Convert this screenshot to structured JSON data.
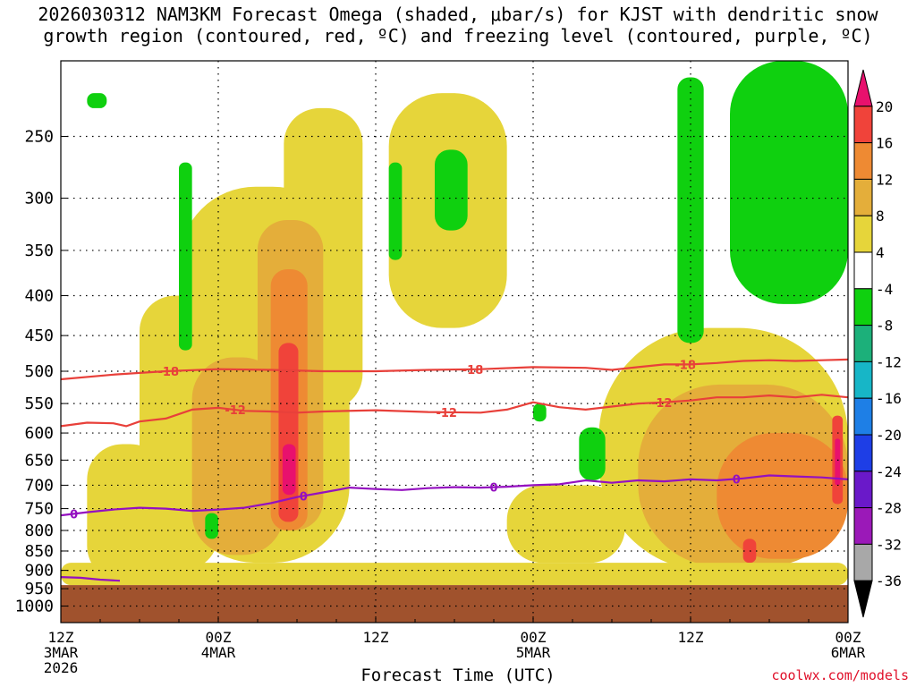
{
  "title": {
    "line1": "2026030312 NAM3KM Forecast Omega (shaded, μbar/s) for KJST with dendritic snow",
    "line2": "growth region (contoured, red, ºC) and freezing level (contoured, purple, ºC)"
  },
  "credit": "coolwx.com/models",
  "chart_data": {
    "type": "heatmap",
    "title": "2026030312 NAM3KM Forecast Omega (shaded, μbar/s) for KJST with dendritic snow growth region (contoured, red, ºC) and freezing level (contoured, purple, ºC)",
    "xlabel": "Forecast Time (UTC)",
    "ylabel": "",
    "x_range_hours": [
      0,
      60
    ],
    "x_ticks": [
      {
        "hour": 0,
        "lines": [
          "12Z",
          "3MAR",
          "2026"
        ]
      },
      {
        "hour": 12,
        "lines": [
          "00Z",
          "4MAR"
        ]
      },
      {
        "hour": 24,
        "lines": [
          "12Z"
        ]
      },
      {
        "hour": 36,
        "lines": [
          "00Z",
          "5MAR"
        ]
      },
      {
        "hour": 48,
        "lines": [
          "12Z"
        ]
      },
      {
        "hour": 60,
        "lines": [
          "00Z",
          "6MAR"
        ]
      }
    ],
    "y_range_hpa": [
      1050,
      200
    ],
    "y_ticks": [
      250,
      300,
      350,
      400,
      450,
      500,
      550,
      600,
      650,
      700,
      750,
      800,
      850,
      900,
      950,
      1000
    ],
    "grid": true,
    "colorbar": {
      "labels": [
        "20",
        "16",
        "12",
        "8",
        "4",
        "-4",
        "-8",
        "-12",
        "-16",
        "-20",
        "-24",
        "-28",
        "-32",
        "-36"
      ],
      "colors": [
        "#e8116d",
        "#f0433a",
        "#ee8a33",
        "#e4ae3a",
        "#e6d53a",
        "#ffffff",
        "#0fd00f",
        "#1cb07a",
        "#17b6c7",
        "#1e7fe6",
        "#1e3ee6",
        "#6a19c9",
        "#9b19b8",
        "#a8a8a8",
        "#000000"
      ]
    },
    "ground_below_hpa": 940,
    "ground_color": "#a0522d",
    "omega_regions": [
      {
        "kind": "rising",
        "level": 4,
        "hours": [
          2,
          8
        ],
        "hpa": [
          930,
          620
        ]
      },
      {
        "kind": "rising",
        "level": 4,
        "hours": [
          6,
          12
        ],
        "hpa": [
          900,
          400
        ]
      },
      {
        "kind": "rising",
        "level": 4,
        "hours": [
          9,
          22
        ],
        "hpa": [
          880,
          290
        ]
      },
      {
        "kind": "rising",
        "level": 4,
        "hours": [
          17,
          23
        ],
        "hpa": [
          560,
          230
        ]
      },
      {
        "kind": "rising",
        "level": 8,
        "hours": [
          10,
          17
        ],
        "hpa": [
          860,
          480
        ]
      },
      {
        "kind": "rising",
        "level": 8,
        "hours": [
          15,
          20
        ],
        "hpa": [
          800,
          320
        ]
      },
      {
        "kind": "rising",
        "level": 12,
        "hours": [
          16,
          18.8
        ],
        "hpa": [
          800,
          370
        ]
      },
      {
        "kind": "rising",
        "level": 16,
        "hours": [
          16.6,
          18.1
        ],
        "hpa": [
          780,
          460
        ]
      },
      {
        "kind": "rising",
        "level": 20,
        "hours": [
          16.9,
          17.9
        ],
        "hpa": [
          720,
          620
        ]
      },
      {
        "kind": "rising",
        "level": 4,
        "hours": [
          25,
          34
        ],
        "hpa": [
          440,
          220
        ]
      },
      {
        "kind": "rising",
        "level": 4,
        "hours": [
          34,
          43
        ],
        "hpa": [
          880,
          700
        ]
      },
      {
        "kind": "rising",
        "level": 4,
        "hours": [
          41,
          60
        ],
        "hpa": [
          900,
          440
        ]
      },
      {
        "kind": "rising",
        "level": 8,
        "hours": [
          44,
          60
        ],
        "hpa": [
          890,
          520
        ]
      },
      {
        "kind": "rising",
        "level": 12,
        "hours": [
          50,
          60
        ],
        "hpa": [
          870,
          600
        ]
      },
      {
        "kind": "rising",
        "level": 16,
        "hours": [
          58.8,
          59.6
        ],
        "hpa": [
          740,
          570
        ]
      },
      {
        "kind": "rising",
        "level": 20,
        "hours": [
          59,
          59.4
        ],
        "hpa": [
          700,
          610
        ]
      },
      {
        "kind": "rising",
        "level": 16,
        "hours": [
          52,
          53
        ],
        "hpa": [
          880,
          820
        ]
      },
      {
        "kind": "rising",
        "level": 4,
        "hours": [
          0,
          60
        ],
        "hpa": [
          940,
          880
        ]
      },
      {
        "kind": "sinking",
        "level": -4,
        "hours": [
          2,
          3.5
        ],
        "hpa": [
          230,
          220
        ]
      },
      {
        "kind": "sinking",
        "level": -4,
        "hours": [
          9,
          10
        ],
        "hpa": [
          470,
          270
        ]
      },
      {
        "kind": "sinking",
        "level": -4,
        "hours": [
          11,
          12
        ],
        "hpa": [
          820,
          760
        ]
      },
      {
        "kind": "sinking",
        "level": -4,
        "hours": [
          25,
          26
        ],
        "hpa": [
          360,
          270
        ]
      },
      {
        "kind": "sinking",
        "level": -4,
        "hours": [
          28.5,
          31
        ],
        "hpa": [
          330,
          260
        ]
      },
      {
        "kind": "sinking",
        "level": -4,
        "hours": [
          36,
          37
        ],
        "hpa": [
          580,
          550
        ]
      },
      {
        "kind": "sinking",
        "level": -4,
        "hours": [
          39.5,
          41.5
        ],
        "hpa": [
          690,
          590
        ]
      },
      {
        "kind": "sinking",
        "level": -4,
        "hours": [
          47,
          49
        ],
        "hpa": [
          460,
          210
        ]
      },
      {
        "kind": "sinking",
        "level": -4,
        "hours": [
          51,
          60
        ],
        "hpa": [
          410,
          200
        ]
      }
    ],
    "contours": [
      {
        "label": "-18",
        "color": "#e8403a",
        "points": [
          [
            0,
            512
          ],
          [
            4,
            505
          ],
          [
            8,
            500
          ],
          [
            12,
            497
          ],
          [
            16,
            498
          ],
          [
            20,
            500
          ],
          [
            24,
            500
          ],
          [
            28,
            498
          ],
          [
            32,
            497
          ],
          [
            36,
            494
          ],
          [
            40,
            495
          ],
          [
            42,
            498
          ],
          [
            44,
            494
          ],
          [
            46,
            490
          ],
          [
            48,
            490
          ],
          [
            50,
            488
          ],
          [
            52,
            485
          ],
          [
            54,
            484
          ],
          [
            56,
            485
          ],
          [
            58,
            484
          ],
          [
            60,
            483
          ]
        ],
        "label_hours": [
          8.2,
          31.4,
          47.6
        ]
      },
      {
        "label": "-12",
        "color": "#e8403a",
        "points": [
          [
            0,
            588
          ],
          [
            2,
            582
          ],
          [
            4,
            583
          ],
          [
            5,
            588
          ],
          [
            6,
            580
          ],
          [
            8,
            575
          ],
          [
            10,
            560
          ],
          [
            12,
            557
          ],
          [
            14,
            562
          ],
          [
            16,
            563
          ],
          [
            18,
            565
          ],
          [
            20,
            563
          ],
          [
            24,
            561
          ],
          [
            28,
            564
          ],
          [
            32,
            565
          ],
          [
            34,
            560
          ],
          [
            36,
            548
          ],
          [
            38,
            556
          ],
          [
            40,
            560
          ],
          [
            42,
            555
          ],
          [
            44,
            550
          ],
          [
            46,
            548
          ],
          [
            48,
            545
          ],
          [
            50,
            540
          ],
          [
            52,
            540
          ],
          [
            54,
            537
          ],
          [
            56,
            540
          ],
          [
            58,
            536
          ],
          [
            60,
            540
          ]
        ],
        "label_hours": [
          13.3,
          29.4,
          45.8
        ]
      },
      {
        "label": "0",
        "color": "#9410c0",
        "points": [
          [
            0,
            765
          ],
          [
            2,
            758
          ],
          [
            4,
            752
          ],
          [
            6,
            748
          ],
          [
            8,
            750
          ],
          [
            10,
            755
          ],
          [
            12,
            752
          ],
          [
            14,
            748
          ],
          [
            16,
            738
          ],
          [
            18,
            725
          ],
          [
            20,
            715
          ],
          [
            22,
            705
          ],
          [
            24,
            708
          ],
          [
            26,
            710
          ],
          [
            28,
            706
          ],
          [
            30,
            704
          ],
          [
            32,
            705
          ],
          [
            34,
            703
          ],
          [
            36,
            700
          ],
          [
            38,
            698
          ],
          [
            40,
            690
          ],
          [
            42,
            695
          ],
          [
            44,
            690
          ],
          [
            46,
            692
          ],
          [
            48,
            688
          ],
          [
            50,
            690
          ],
          [
            52,
            686
          ],
          [
            54,
            680
          ],
          [
            56,
            682
          ],
          [
            58,
            684
          ],
          [
            60,
            688
          ]
        ],
        "label_hours": [
          1.0,
          18.5,
          33.0,
          51.5
        ]
      },
      {
        "label": "",
        "color": "#9410c0",
        "points": [
          [
            0,
            918
          ],
          [
            1.5,
            920
          ],
          [
            3,
            925
          ],
          [
            4.5,
            928
          ]
        ],
        "label_hours": []
      }
    ]
  }
}
